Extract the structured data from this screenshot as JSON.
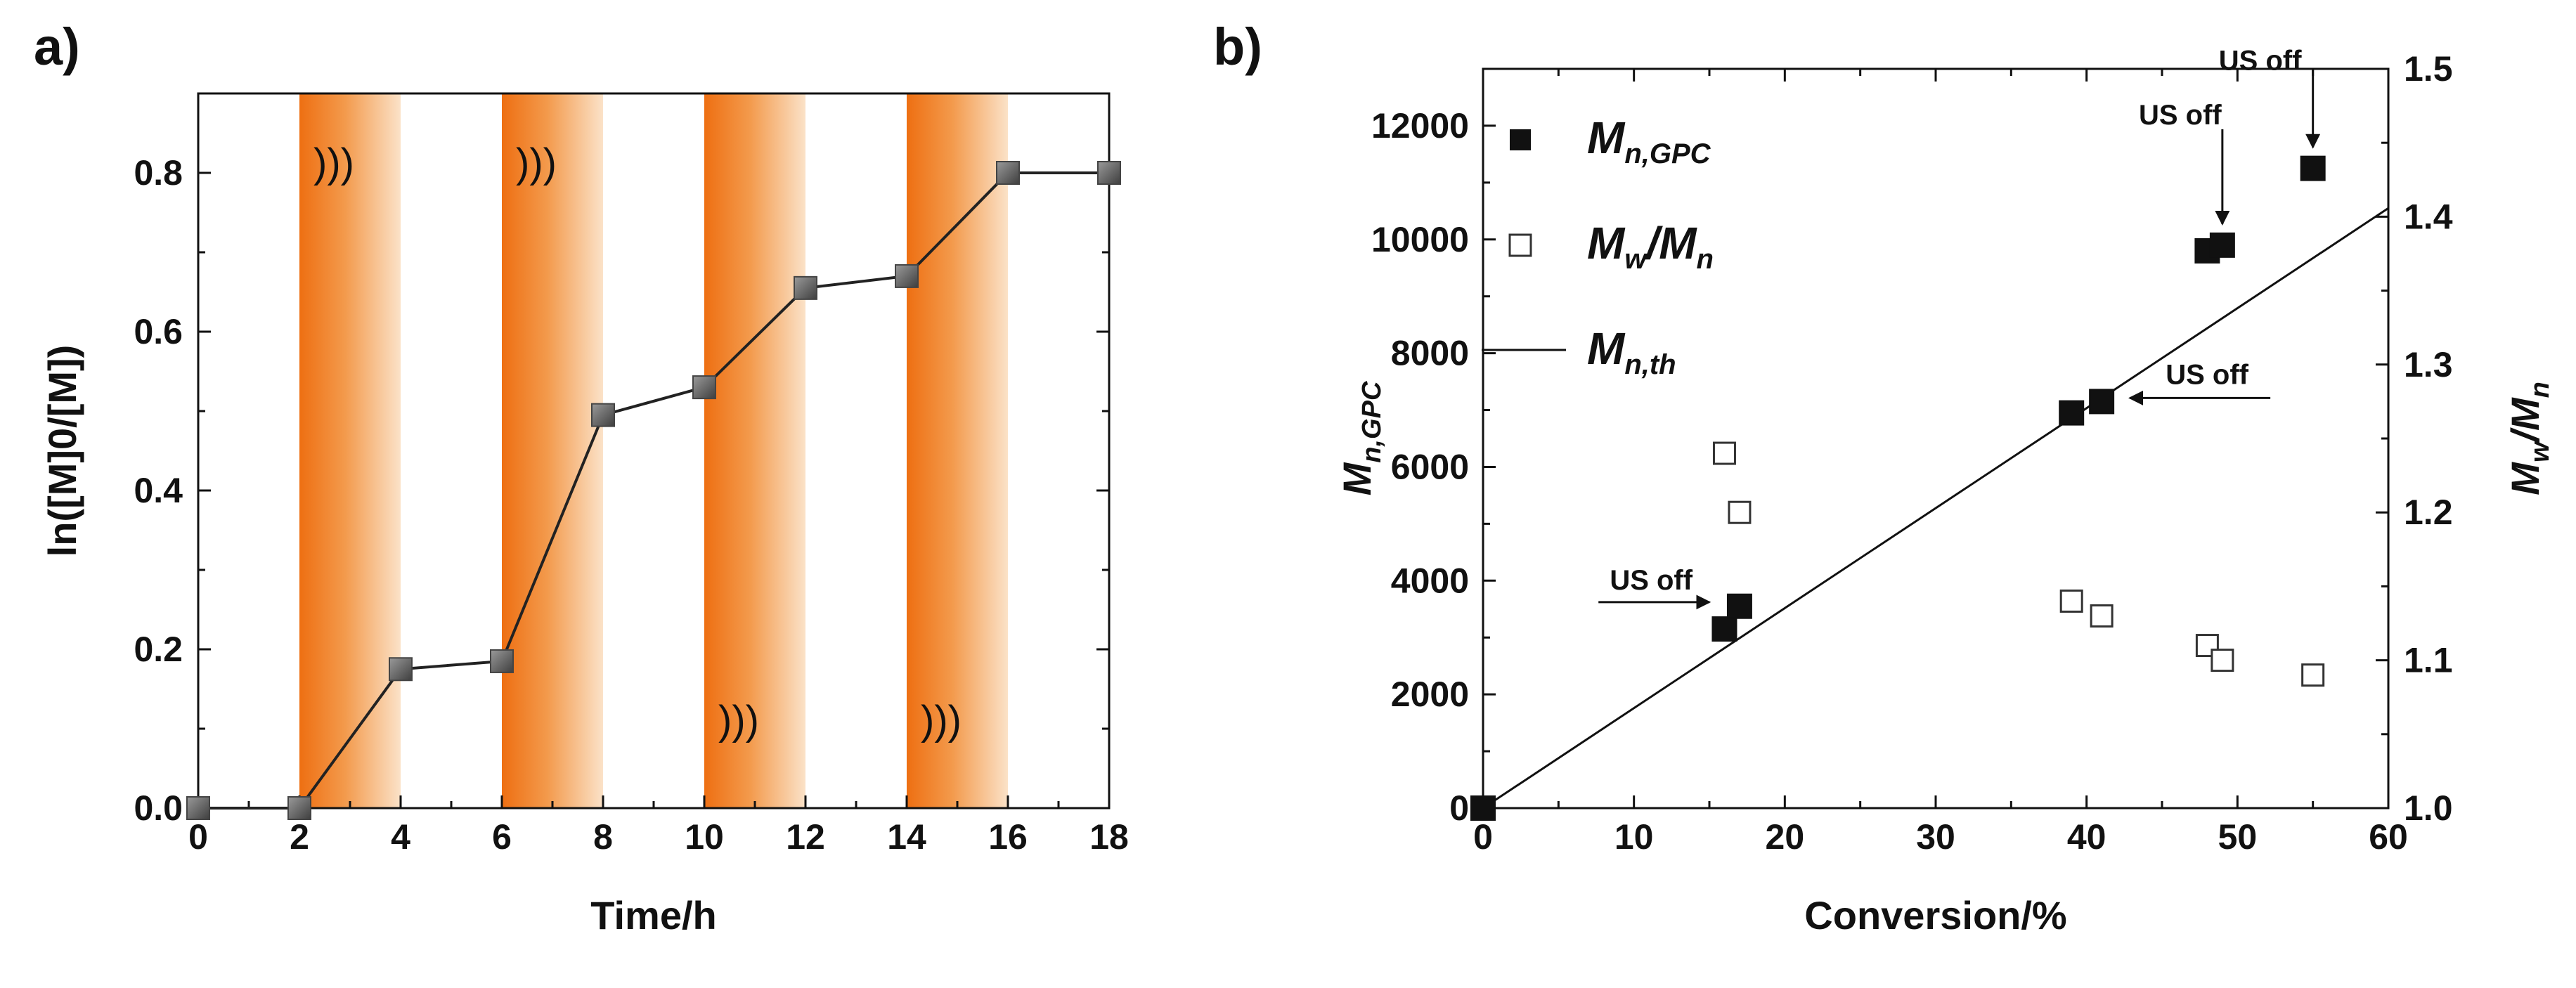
{
  "chart_data": [
    {
      "panel": "a)",
      "type": "line",
      "xlabel": "Time/h",
      "ylabel": "ln([M]0/[M])",
      "xlim": [
        0,
        18
      ],
      "ylim": [
        0,
        0.9
      ],
      "xticks": [
        0,
        2,
        4,
        6,
        8,
        10,
        12,
        14,
        16,
        18
      ],
      "yticks": [
        0.0,
        0.2,
        0.4,
        0.6,
        0.8
      ],
      "x": [
        0,
        2,
        4,
        6,
        8,
        10,
        12,
        14,
        16,
        18
      ],
      "y": [
        0.0,
        0.0,
        0.175,
        0.185,
        0.495,
        0.53,
        0.655,
        0.67,
        0.8,
        0.8
      ],
      "ultrasound_on_intervals": [
        [
          2,
          4
        ],
        [
          6,
          8
        ],
        [
          10,
          12
        ],
        [
          14,
          16
        ]
      ],
      "ultrasound_symbol": ")))",
      "shading_color": "#f07a1c",
      "marker_color": "#666666"
    },
    {
      "panel": "b)",
      "type": "scatter",
      "xlabel": "Conversion/%",
      "ylabel_left": "Mn,GPC",
      "ylabel_right": "Mw/Mn",
      "xlim": [
        0,
        60
      ],
      "ylim_left": [
        0,
        13000
      ],
      "ylim_right": [
        1.0,
        1.5
      ],
      "xticks": [
        0,
        10,
        20,
        30,
        40,
        50,
        60
      ],
      "yticks_left": [
        0,
        2000,
        4000,
        6000,
        8000,
        10000,
        12000
      ],
      "yticks_right": [
        1.0,
        1.1,
        1.2,
        1.3,
        1.4,
        1.5
      ],
      "series": [
        {
          "name": "Mn,GPC",
          "marker": "filled-square",
          "axis": "left",
          "x": [
            0,
            16,
            17,
            39,
            41,
            48,
            49,
            55
          ],
          "y": [
            0,
            3150,
            3550,
            6950,
            7150,
            9800,
            9900,
            11250
          ]
        },
        {
          "name": "Mw/Mn",
          "marker": "open-square",
          "axis": "right",
          "x": [
            16,
            17,
            39,
            41,
            48,
            49,
            55
          ],
          "y": [
            1.24,
            1.2,
            1.14,
            1.13,
            1.11,
            1.1,
            1.09
          ]
        },
        {
          "name": "Mn,th",
          "marker": "line",
          "axis": "left",
          "x": [
            0,
            60
          ],
          "y": [
            0,
            10550
          ]
        }
      ],
      "legend": {
        "placement": "top-left",
        "entries": [
          {
            "main": "M",
            "sub": "n,GPC",
            "marker": "filled-square"
          },
          {
            "main": "M",
            "sub": "w",
            "sep": "/M",
            "sub2": "n",
            "marker": "open-square"
          },
          {
            "main": "M",
            "sub": "n,th",
            "marker": "line"
          }
        ]
      },
      "annotations": [
        {
          "text": "US off",
          "arrow": "right",
          "target_x": 16.5,
          "target_y": 3350
        },
        {
          "text": "US off",
          "arrow": "left",
          "target_x": 41,
          "target_y": 7150
        },
        {
          "text": "US off",
          "arrow": "down",
          "target_x": 49,
          "target_y": 9900
        },
        {
          "text": "US off",
          "arrow": "down",
          "target_x": 55,
          "target_y": 11250
        }
      ]
    }
  ]
}
